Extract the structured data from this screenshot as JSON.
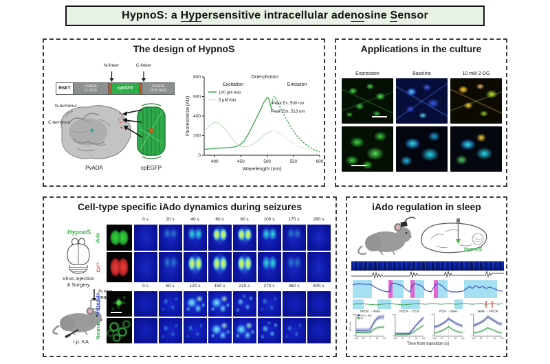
{
  "title": {
    "parts": [
      {
        "text": "HypnoS: a ",
        "u": false
      },
      {
        "text": "Hyp",
        "u": true
      },
      {
        "text": "ersensitive intracellular ade",
        "u": false
      },
      {
        "text": "no",
        "u": true
      },
      {
        "text": "sine ",
        "u": false
      },
      {
        "text": "S",
        "u": true
      },
      {
        "text": "ensor",
        "u": false
      }
    ]
  },
  "panels": {
    "design": {
      "title": "The design of HypnoS",
      "construct": {
        "n_linker": "N-linker",
        "c_linker": "C-linker",
        "segments": [
          {
            "label": "RSET",
            "type": "rset"
          },
          {
            "label": "PvADA",
            "sub": "(1-170)",
            "type": "pvada"
          },
          {
            "label": "",
            "type": "linker"
          },
          {
            "label": "cpEGFP",
            "type": "cpegfp"
          },
          {
            "label": "",
            "type": "linker"
          },
          {
            "label": "PvADA",
            "sub": "(176-363)",
            "type": "pvada"
          }
        ]
      },
      "structure": {
        "n_term": "N-terminus",
        "c_term": "C-terminus",
        "left_label": "PvADA",
        "right_label": "cpEGFP"
      }
    },
    "culture": {
      "title": "Applications in the culture",
      "columns": [
        "Expression",
        "Baseline",
        "10 mM 2-DG"
      ]
    },
    "seizures": {
      "title": "Cell-type specific iAdo dynamics during seizures",
      "side": {
        "sensor": "HypnoS",
        "line1": "Virus injection",
        "line2": "& Surgery",
        "line3a": "In vivo",
        "line3b": "imaging",
        "line4": "i.p. KA"
      },
      "time_rows": [
        {
          "times": [
            "0 s",
            "20 s",
            "40 s",
            "60 s",
            "80 s",
            "100 s",
            "170 s",
            "280 s"
          ]
        },
        {
          "times": [
            "0 s",
            "60 s",
            "120 s",
            "150 s",
            "210 s",
            "270 s",
            "360 s",
            "600 s"
          ]
        }
      ],
      "rows": [
        {
          "label": "iAdo",
          "color": "#3bb54a",
          "ref": "green-brain",
          "pattern": "b",
          "levels": [
            0,
            1,
            2,
            3,
            3,
            2,
            1,
            0
          ]
        },
        {
          "label": "Ca²⁺",
          "color": "#e23a3a",
          "ref": "red-brain",
          "pattern": "b",
          "levels": [
            0,
            1,
            3,
            3,
            3,
            2,
            1,
            0
          ]
        },
        {
          "label": "Astrocyte",
          "color": "#3a4fd8",
          "ref": "astrocyte",
          "pattern": "c",
          "levels": [
            0,
            1,
            3,
            3,
            2,
            1,
            0,
            0
          ]
        },
        {
          "label": "Neuron",
          "color": "#2f9e44",
          "ref": "neuron",
          "pattern": "c",
          "levels": [
            0,
            1,
            1,
            3,
            3,
            2,
            1,
            0
          ]
        }
      ]
    },
    "sleep": {
      "title": "iAdo regulation in sleep",
      "sensor": "HypnoS",
      "xlabel": "Time from transition (s)"
    }
  },
  "chart_data": [
    {
      "type": "line",
      "title": "One-photon",
      "xlabel": "Wavelength (nm)",
      "ylabel": "Fluorescence (AU)",
      "xlim": [
        380,
        600
      ],
      "ylim": [
        0,
        800
      ],
      "xticks": [
        400,
        450,
        500,
        550,
        600
      ],
      "yticks": [
        0,
        200,
        400,
        600,
        800
      ],
      "region_labels": [
        "Excitation",
        "Emission"
      ],
      "annotations": [
        "Peak Ex. 500 nm",
        "Peak Em. 513 nm"
      ],
      "legend": [
        "100 μM Ado",
        "0   μM Ado"
      ],
      "series": [
        {
          "name": "100 uM Ado excitation",
          "color": "#37a24b",
          "dash": false,
          "points": [
            [
              380,
              60
            ],
            [
              390,
              64
            ],
            [
              400,
              70
            ],
            [
              408,
              72
            ],
            [
              416,
              74
            ],
            [
              424,
              76
            ],
            [
              432,
              80
            ],
            [
              440,
              88
            ],
            [
              448,
              105
            ],
            [
              456,
              145
            ],
            [
              464,
              215
            ],
            [
              472,
              300
            ],
            [
              480,
              385
            ],
            [
              488,
              470
            ],
            [
              494,
              545
            ],
            [
              500,
              590
            ],
            [
              503,
              580
            ],
            [
              506,
              520
            ],
            [
              509,
              450
            ]
          ]
        },
        {
          "name": "100 uM Ado emission",
          "color": "#37a24b",
          "dash": true,
          "points": [
            [
              506,
              500
            ],
            [
              510,
              560
            ],
            [
              513,
              600
            ],
            [
              517,
              575
            ],
            [
              522,
              520
            ],
            [
              528,
              450
            ],
            [
              535,
              380
            ],
            [
              542,
              315
            ],
            [
              550,
              245
            ],
            [
              558,
              190
            ],
            [
              566,
              145
            ],
            [
              574,
              108
            ],
            [
              582,
              80
            ],
            [
              590,
              55
            ],
            [
              600,
              35
            ]
          ]
        },
        {
          "name": "0 uM Ado excitation",
          "color": "#c9e4c9",
          "dash": false,
          "points": [
            [
              380,
              245
            ],
            [
              388,
              290
            ],
            [
              396,
              325
            ],
            [
              400,
              338
            ],
            [
              404,
              335
            ],
            [
              410,
              318
            ],
            [
              418,
              280
            ],
            [
              426,
              225
            ],
            [
              434,
              165
            ],
            [
              442,
              115
            ],
            [
              450,
              88
            ],
            [
              458,
              88
            ],
            [
              466,
              98
            ],
            [
              474,
              118
            ],
            [
              482,
              145
            ],
            [
              490,
              185
            ],
            [
              496,
              215
            ],
            [
              502,
              235
            ],
            [
              506,
              240
            ]
          ]
        },
        {
          "name": "0 uM Ado emission",
          "color": "#c9e4c9",
          "dash": true,
          "points": [
            [
              506,
              242
            ],
            [
              510,
              248
            ],
            [
              513,
              250
            ],
            [
              518,
              240
            ],
            [
              524,
              222
            ],
            [
              532,
              192
            ],
            [
              540,
              160
            ],
            [
              548,
              130
            ],
            [
              556,
              105
            ],
            [
              564,
              85
            ],
            [
              572,
              68
            ],
            [
              580,
              55
            ],
            [
              590,
              42
            ],
            [
              600,
              32
            ]
          ]
        }
      ]
    },
    {
      "type": "line",
      "title": "NREM → Wake",
      "ylim": [
        0,
        20
      ],
      "ylabel": "ΔF/F₀ (%)",
      "x": [
        -100,
        -75,
        -50,
        -25,
        0,
        25,
        50,
        75,
        100
      ],
      "x_ticks": [
        -100,
        -50,
        0,
        50,
        100
      ],
      "legend": [
        "ENT1/2 dKO",
        "WT"
      ],
      "series": [
        {
          "name": "ENT1/2 dKO",
          "color": "#2b3a9e",
          "err": 2.2,
          "values": [
            5,
            5,
            5,
            5,
            5.5,
            12,
            16,
            17,
            17
          ]
        },
        {
          "name": "WT",
          "color": "#2f9e44",
          "err": 1.3,
          "values": [
            3,
            3,
            3,
            3,
            3.2,
            6,
            7.5,
            8,
            8
          ]
        }
      ]
    },
    {
      "type": "line",
      "title": "NREM → REM",
      "ylim": [
        0,
        40
      ],
      "x": [
        -100,
        -75,
        -50,
        -25,
        0,
        25,
        50,
        75,
        100
      ],
      "x_ticks": [
        -100,
        -50,
        0,
        50,
        100
      ],
      "series": [
        {
          "name": "ENT1/2 dKO",
          "color": "#2b3a9e",
          "err": 3,
          "values": [
            4,
            4,
            4,
            4,
            4.5,
            12,
            20,
            27,
            33
          ]
        },
        {
          "name": "WT",
          "color": "#2f9e44",
          "err": 2,
          "values": [
            3,
            3,
            3,
            3,
            3.2,
            6,
            11,
            15,
            19
          ]
        }
      ]
    },
    {
      "type": "line",
      "title": "REM → Wake",
      "ylim": [
        0,
        40
      ],
      "x": [
        -100,
        -75,
        -50,
        -25,
        0,
        25,
        50,
        75,
        100
      ],
      "x_ticks": [
        -100,
        -50,
        0,
        50,
        100
      ],
      "series": [
        {
          "name": "ENT1/2 dKO",
          "color": "#2b3a9e",
          "err": 3,
          "values": [
            16,
            18,
            21,
            25,
            31,
            27,
            23,
            20,
            18
          ]
        },
        {
          "name": "WT",
          "color": "#2f9e44",
          "err": 2,
          "values": [
            5,
            7,
            9,
            12,
            17,
            12,
            9,
            7,
            6
          ]
        }
      ]
    },
    {
      "type": "line",
      "title": "Wake → NREM",
      "ylim": [
        0,
        30
      ],
      "x": [
        -100,
        -75,
        -50,
        -25,
        0,
        25,
        50,
        75,
        100
      ],
      "x_ticks": [
        -100,
        -50,
        0,
        50,
        100
      ],
      "series": [
        {
          "name": "ENT1/2 dKO",
          "color": "#2b3a9e",
          "err": 2.5,
          "values": [
            14,
            16,
            18,
            21,
            26,
            23,
            20,
            17,
            16
          ]
        },
        {
          "name": "WT",
          "color": "#2f9e44",
          "err": 1.5,
          "values": [
            4,
            5,
            6,
            8,
            11,
            9,
            7,
            5,
            4
          ]
        }
      ]
    }
  ]
}
